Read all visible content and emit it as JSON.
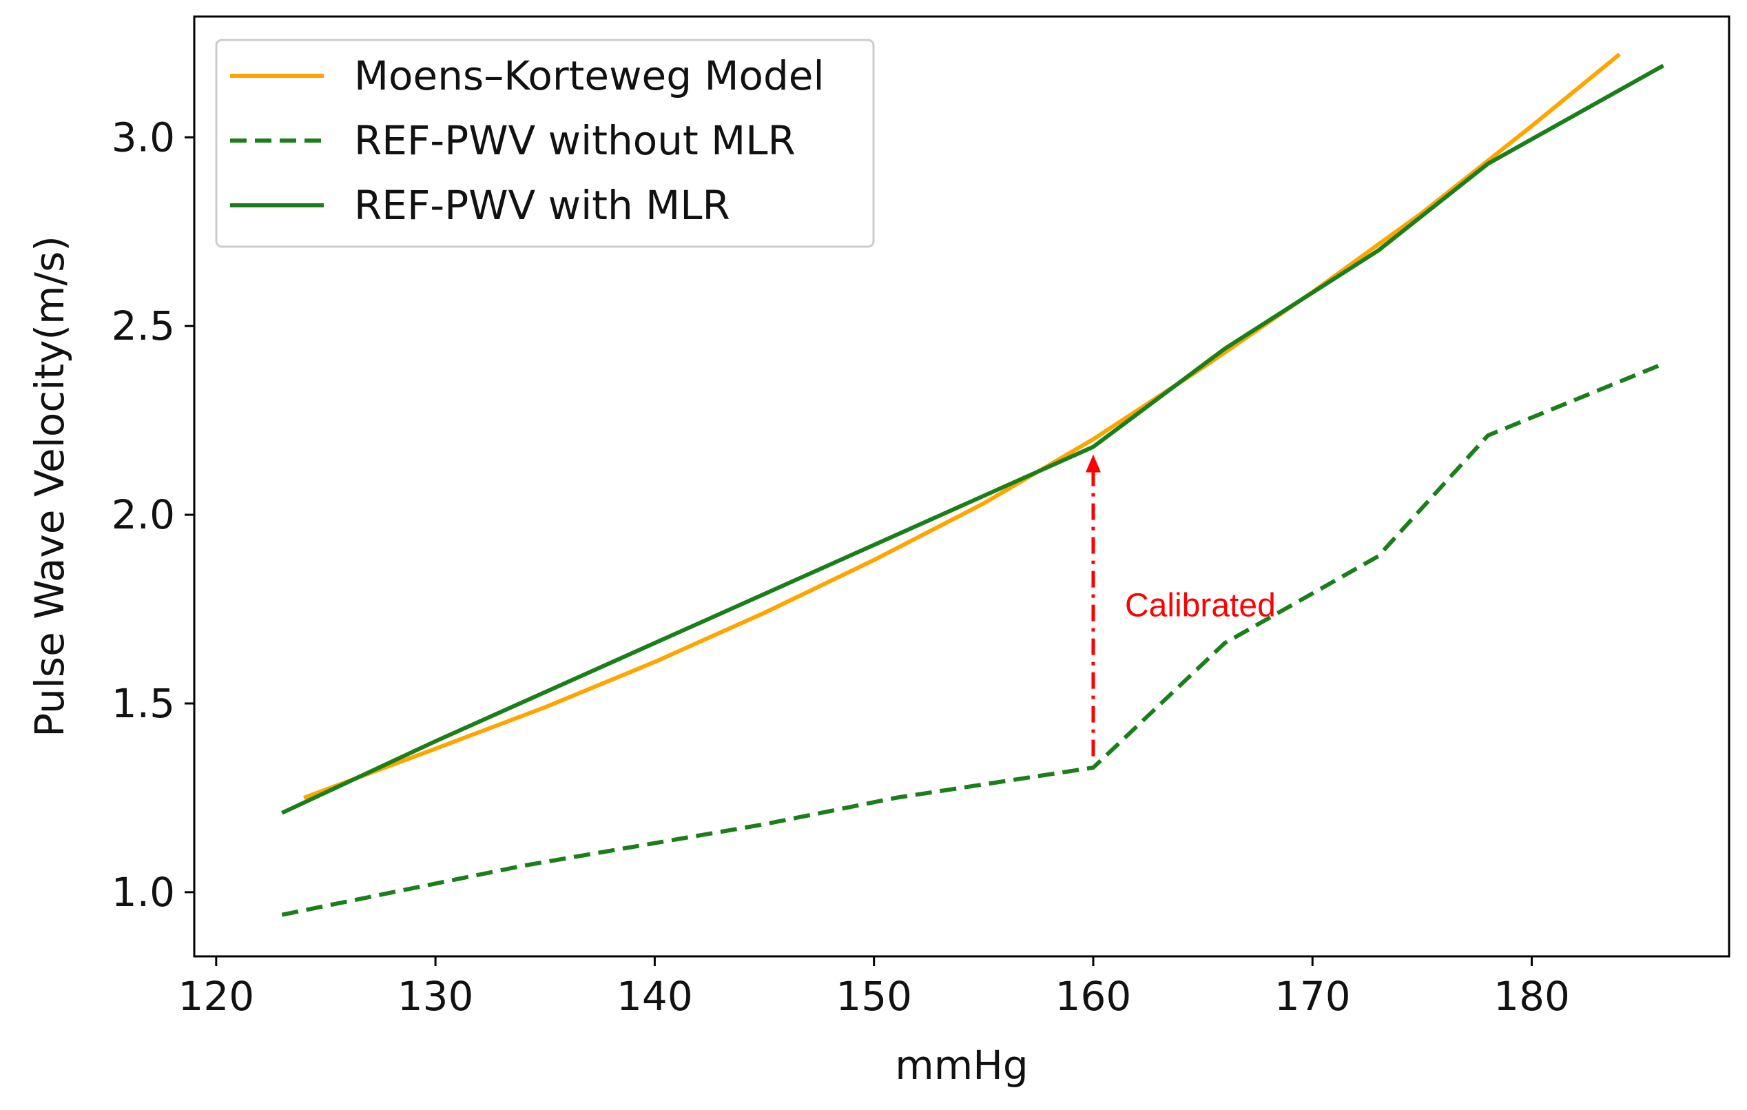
{
  "chart_data": {
    "type": "line",
    "title": "",
    "xlabel": "mmHg",
    "ylabel": "Pulse Wave Velocity(m/s)",
    "xlim": [
      119,
      189
    ],
    "ylim": [
      0.83,
      3.32
    ],
    "xticks": [
      120,
      130,
      140,
      150,
      160,
      170,
      180
    ],
    "xtick_labels": [
      "120",
      "130",
      "140",
      "150",
      "160",
      "170",
      "180"
    ],
    "yticks": [
      1.0,
      1.5,
      2.0,
      2.5,
      3.0
    ],
    "ytick_labels": [
      "1.0",
      "1.5",
      "2.0",
      "2.5",
      "3.0"
    ],
    "grid": false,
    "legend_position": "top-left",
    "series": [
      {
        "name": "Moens–Korteweg Model",
        "color": "#FFA500",
        "style": "solid",
        "x": [
          124,
          130,
          135,
          140,
          145,
          150,
          155,
          160,
          165,
          170,
          175,
          180,
          184
        ],
        "y": [
          1.25,
          1.38,
          1.49,
          1.61,
          1.74,
          1.88,
          2.03,
          2.2,
          2.39,
          2.59,
          2.8,
          3.03,
          3.22
        ]
      },
      {
        "name": "REF-PWV without MLR",
        "color": "#1A7F1A",
        "style": "dashed",
        "x": [
          123,
          134,
          145,
          151,
          160,
          166,
          173,
          178,
          186
        ],
        "y": [
          0.94,
          1.07,
          1.18,
          1.25,
          1.33,
          1.66,
          1.89,
          2.21,
          2.4
        ]
      },
      {
        "name": "REF-PWV with MLR",
        "color": "#1A7F1A",
        "style": "solid",
        "x": [
          123,
          130,
          140,
          150,
          160,
          166,
          173,
          178,
          186
        ],
        "y": [
          1.21,
          1.4,
          1.66,
          1.92,
          2.18,
          2.44,
          2.7,
          2.93,
          3.19
        ]
      }
    ],
    "annotation": {
      "text": "Calibrated",
      "color": "#FF0000",
      "x": 160,
      "y_from": 1.36,
      "y_to": 2.16
    }
  }
}
